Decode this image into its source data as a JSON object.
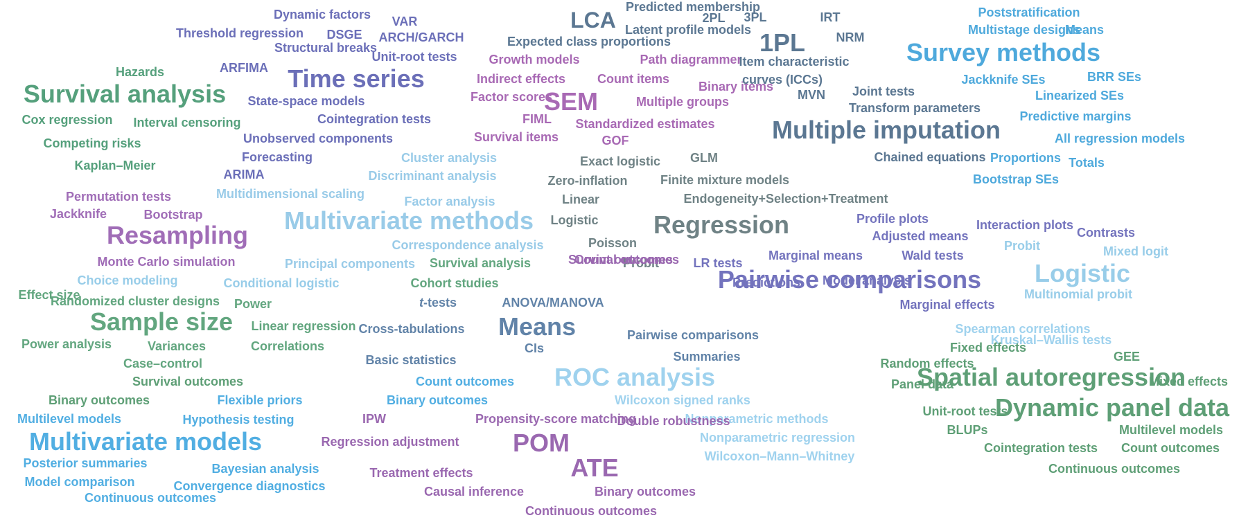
{
  "colors": {
    "time_series": "#6b6fb8",
    "survival": "#55a07c",
    "sem": "#a869b4",
    "irt": "#5b7792",
    "survey": "#4ea9dc",
    "multivariate": "#99cbe8",
    "regression": "#6f8285",
    "resampling": "#a06db7",
    "model_analysis": "#7373bd",
    "choice": "#98cde9",
    "power": "#62a67f",
    "basic_stats": "#6183a8",
    "nonparametric": "#9fd2ee",
    "panel": "#5e9f76",
    "bayesian": "#51aee2",
    "treatment": "#9a68b0"
  },
  "words": [
    {
      "text": "Dynamic factors",
      "group": "time_series"
    },
    {
      "text": "VAR",
      "group": "time_series"
    },
    {
      "text": "Threshold regression",
      "group": "time_series"
    },
    {
      "text": "DSGE",
      "group": "time_series"
    },
    {
      "text": "ARCH/GARCH",
      "group": "time_series"
    },
    {
      "text": "Structural breaks",
      "group": "time_series"
    },
    {
      "text": "Unit-root tests",
      "group": "time_series"
    },
    {
      "text": "ARFIMA",
      "group": "time_series"
    },
    {
      "text": "Time series",
      "group": "time_series"
    },
    {
      "text": "State-space models",
      "group": "time_series"
    },
    {
      "text": "Cointegration tests",
      "group": "time_series"
    },
    {
      "text": "Unobserved components",
      "group": "time_series"
    },
    {
      "text": "Forecasting",
      "group": "time_series"
    },
    {
      "text": "ARIMA",
      "group": "time_series"
    },
    {
      "text": "Hazards",
      "group": "survival"
    },
    {
      "text": "Survival analysis",
      "group": "survival"
    },
    {
      "text": "Cox regression",
      "group": "survival"
    },
    {
      "text": "Interval censoring",
      "group": "survival"
    },
    {
      "text": "Competing risks",
      "group": "survival"
    },
    {
      "text": "Kaplan–Meier",
      "group": "survival"
    },
    {
      "text": "Growth models",
      "group": "sem"
    },
    {
      "text": "Path diagrammer",
      "group": "sem"
    },
    {
      "text": "Indirect effects",
      "group": "sem"
    },
    {
      "text": "Count items",
      "group": "sem"
    },
    {
      "text": "Binary items",
      "group": "sem"
    },
    {
      "text": "Factor scores",
      "group": "sem"
    },
    {
      "text": "SEM",
      "group": "sem"
    },
    {
      "text": "Multiple groups",
      "group": "sem"
    },
    {
      "text": "FIML",
      "group": "sem"
    },
    {
      "text": "Standardized estimates",
      "group": "sem"
    },
    {
      "text": "Survival items",
      "group": "sem"
    },
    {
      "text": "GOF",
      "group": "sem"
    },
    {
      "text": "LCA",
      "group": "irt"
    },
    {
      "text": "Predicted membership",
      "group": "irt"
    },
    {
      "text": "Latent profile models",
      "group": "irt"
    },
    {
      "text": "Expected class proportions",
      "group": "irt"
    },
    {
      "text": "2PL",
      "group": "irt"
    },
    {
      "text": "3PL",
      "group": "irt"
    },
    {
      "text": "1PL",
      "group": "irt"
    },
    {
      "text": "IRT",
      "group": "irt"
    },
    {
      "text": "NRM",
      "group": "irt"
    },
    {
      "text": "Item characteristic",
      "group": "irt"
    },
    {
      "text": "curves (ICCs)",
      "group": "irt"
    },
    {
      "text": "MVN",
      "group": "irt"
    },
    {
      "text": "Joint tests",
      "group": "irt"
    },
    {
      "text": "Transform parameters",
      "group": "irt"
    },
    {
      "text": "Multiple imputation",
      "group": "irt"
    },
    {
      "text": "Chained equations",
      "group": "irt"
    },
    {
      "text": "Poststratification",
      "group": "survey"
    },
    {
      "text": "Multistage designs",
      "group": "survey"
    },
    {
      "text": "Means",
      "group": "survey"
    },
    {
      "text": "Survey methods",
      "group": "survey"
    },
    {
      "text": "Jackknife SEs",
      "group": "survey"
    },
    {
      "text": "BRR SEs",
      "group": "survey"
    },
    {
      "text": "Linearized SEs",
      "group": "survey"
    },
    {
      "text": "Predictive margins",
      "group": "survey"
    },
    {
      "text": "All regression models",
      "group": "survey"
    },
    {
      "text": "Proportions",
      "group": "survey"
    },
    {
      "text": "Totals",
      "group": "survey"
    },
    {
      "text": "Bootstrap SEs",
      "group": "survey"
    },
    {
      "text": "Cluster analysis",
      "group": "multivariate"
    },
    {
      "text": "Discriminant analysis",
      "group": "multivariate"
    },
    {
      "text": "Multidimensional scaling",
      "group": "multivariate"
    },
    {
      "text": "Factor analysis",
      "group": "multivariate"
    },
    {
      "text": "Multivariate methods",
      "group": "multivariate"
    },
    {
      "text": "Correspondence analysis",
      "group": "multivariate"
    },
    {
      "text": "Principal components",
      "group": "multivariate"
    },
    {
      "text": "Exact logistic",
      "group": "regression"
    },
    {
      "text": "GLM",
      "group": "regression"
    },
    {
      "text": "Zero-inflation",
      "group": "regression"
    },
    {
      "text": "Finite mixture models",
      "group": "regression"
    },
    {
      "text": "Linear",
      "group": "regression"
    },
    {
      "text": "Endogeneity+Selection+Treatment",
      "group": "regression"
    },
    {
      "text": "Logistic",
      "group": "regression"
    },
    {
      "text": "Regression",
      "group": "regression"
    },
    {
      "text": "Poisson",
      "group": "regression"
    },
    {
      "text": "Probit",
      "group": "regression"
    },
    {
      "text": "Permutation tests",
      "group": "resampling"
    },
    {
      "text": "Jackknife",
      "group": "resampling"
    },
    {
      "text": "Bootstrap",
      "group": "resampling"
    },
    {
      "text": "Resampling",
      "group": "resampling"
    },
    {
      "text": "Monte Carlo simulation",
      "group": "resampling"
    },
    {
      "text": "Profile plots",
      "group": "model_analysis"
    },
    {
      "text": "Adjusted means",
      "group": "model_analysis"
    },
    {
      "text": "LR tests",
      "group": "model_analysis"
    },
    {
      "text": "Marginal means",
      "group": "model_analysis"
    },
    {
      "text": "Wald tests",
      "group": "model_analysis"
    },
    {
      "text": "Predictions",
      "group": "model_analysis"
    },
    {
      "text": "Model analysis",
      "group": "model_analysis"
    },
    {
      "text": "Pairwise comparisons",
      "group": "model_analysis"
    },
    {
      "text": "Marginal effects",
      "group": "model_analysis"
    },
    {
      "text": "Interaction plots",
      "group": "model_analysis"
    },
    {
      "text": "Contrasts",
      "group": "model_analysis"
    },
    {
      "text": "Probit",
      "group": "choice"
    },
    {
      "text": "Mixed logit",
      "group": "choice"
    },
    {
      "text": "Logistic",
      "group": "choice"
    },
    {
      "text": "Multinomial probit",
      "group": "choice"
    },
    {
      "text": "Choice modeling",
      "group": "choice"
    },
    {
      "text": "Conditional logistic",
      "group": "choice"
    },
    {
      "text": "Effect size",
      "group": "power"
    },
    {
      "text": "Randomized cluster designs",
      "group": "power"
    },
    {
      "text": "Power",
      "group": "power"
    },
    {
      "text": "Sample size",
      "group": "power"
    },
    {
      "text": "Linear regression",
      "group": "power"
    },
    {
      "text": "Power analysis",
      "group": "power"
    },
    {
      "text": "Variances",
      "group": "power"
    },
    {
      "text": "Correlations",
      "group": "power"
    },
    {
      "text": "Case–control",
      "group": "power"
    },
    {
      "text": "Survival analysis",
      "group": "power"
    },
    {
      "text": "Cohort studies",
      "group": "power"
    },
    {
      "text": "t-tests",
      "group": "basic_stats"
    },
    {
      "text": "ANOVA/MANOVA",
      "group": "basic_stats"
    },
    {
      "text": "Cross-tabulations",
      "group": "basic_stats"
    },
    {
      "text": "Means",
      "group": "basic_stats"
    },
    {
      "text": "CIs",
      "group": "basic_stats"
    },
    {
      "text": "Basic statistics",
      "group": "basic_stats"
    },
    {
      "text": "Pairwise comparisons",
      "group": "basic_stats"
    },
    {
      "text": "Summaries",
      "group": "basic_stats"
    },
    {
      "text": "ROC analysis",
      "group": "nonparametric"
    },
    {
      "text": "Wilcoxon signed ranks",
      "group": "nonparametric"
    },
    {
      "text": "Nonparametric methods",
      "group": "nonparametric"
    },
    {
      "text": "Nonparametric regression",
      "group": "nonparametric"
    },
    {
      "text": "Wilcoxon–Mann–Whitney",
      "group": "nonparametric"
    },
    {
      "text": "Spearman correlations",
      "group": "nonparametric"
    },
    {
      "text": "Kruskal–Wallis tests",
      "group": "nonparametric"
    },
    {
      "text": "Fixed effects",
      "group": "panel"
    },
    {
      "text": "GEE",
      "group": "panel"
    },
    {
      "text": "Random effects",
      "group": "panel"
    },
    {
      "text": "Spatial autoregression",
      "group": "panel"
    },
    {
      "text": "Mixed effects",
      "group": "panel"
    },
    {
      "text": "Panel data",
      "group": "panel"
    },
    {
      "text": "Unit-root tests",
      "group": "panel"
    },
    {
      "text": "Dynamic panel data",
      "group": "panel"
    },
    {
      "text": "BLUPs",
      "group": "panel"
    },
    {
      "text": "Multilevel models",
      "group": "panel"
    },
    {
      "text": "Cointegration tests",
      "group": "panel"
    },
    {
      "text": "Count outcomes",
      "group": "panel"
    },
    {
      "text": "Continuous outcomes",
      "group": "panel"
    },
    {
      "text": "Survival outcomes",
      "group": "panel"
    },
    {
      "text": "Binary outcomes",
      "group": "panel"
    },
    {
      "text": "Flexible priors",
      "group": "bayesian"
    },
    {
      "text": "Multilevel models",
      "group": "bayesian"
    },
    {
      "text": "Hypothesis testing",
      "group": "bayesian"
    },
    {
      "text": "Multivariate models",
      "group": "bayesian"
    },
    {
      "text": "Posterior summaries",
      "group": "bayesian"
    },
    {
      "text": "Bayesian analysis",
      "group": "bayesian"
    },
    {
      "text": "Model comparison",
      "group": "bayesian"
    },
    {
      "text": "Convergence diagnostics",
      "group": "bayesian"
    },
    {
      "text": "Continuous outcomes",
      "group": "bayesian"
    },
    {
      "text": "Count outcomes",
      "group": "bayesian"
    },
    {
      "text": "Binary outcomes",
      "group": "bayesian"
    },
    {
      "text": "IPW",
      "group": "treatment"
    },
    {
      "text": "Propensity-score matching",
      "group": "treatment"
    },
    {
      "text": "Double robustness",
      "group": "treatment"
    },
    {
      "text": "Regression adjustment",
      "group": "treatment"
    },
    {
      "text": "POM",
      "group": "treatment"
    },
    {
      "text": "ATE",
      "group": "treatment"
    },
    {
      "text": "Treatment effects",
      "group": "treatment"
    },
    {
      "text": "Causal inference",
      "group": "treatment"
    },
    {
      "text": "Binary outcomes",
      "group": "treatment"
    },
    {
      "text": "Continuous outcomes",
      "group": "treatment"
    },
    {
      "text": "Count outcomes",
      "group": "treatment"
    },
    {
      "text": "Survival outcomes",
      "group": "treatment"
    }
  ]
}
